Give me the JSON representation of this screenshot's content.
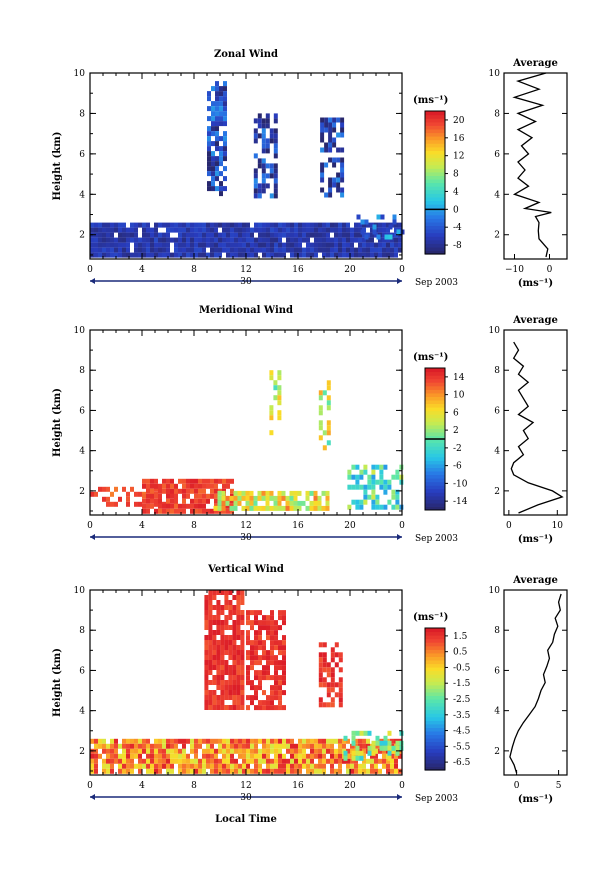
{
  "figure": {
    "xlabel": "Local Time",
    "date_label": "Sep 2003",
    "day_label": "30",
    "colors": {
      "axis": "#000000",
      "background": "#ffffff"
    }
  },
  "chart_data": [
    {
      "type": "heatmap",
      "title": "Zonal Wind",
      "xlabel": "",
      "ylabel": "Height (km)",
      "xlim": [
        0,
        24
      ],
      "ylim": [
        0.8,
        10
      ],
      "x_ticks": [
        "0",
        "4",
        "8",
        "12",
        "16",
        "20",
        "0"
      ],
      "y_ticks": [
        "2",
        "4",
        "6",
        "8",
        "10"
      ],
      "colorbar": {
        "unit": "(ms⁻¹)",
        "min": -10,
        "max": 22,
        "ticks": [
          "-8",
          "-4",
          "0",
          "4",
          "8",
          "12",
          "16",
          "20"
        ],
        "zero_line": 0
      },
      "regions": [
        {
          "t": [
            0,
            24
          ],
          "h": [
            1.0,
            2.6
          ],
          "v": -7,
          "density": 0.95
        },
        {
          "t": [
            9,
            10.6
          ],
          "h": [
            3.9,
            9.6
          ],
          "v": -6,
          "density": 0.75,
          "mixed": true
        },
        {
          "t": [
            12.6,
            14.5
          ],
          "h": [
            3.9,
            8.0
          ],
          "v": -6,
          "density": 0.7,
          "mixed": true
        },
        {
          "t": [
            17.7,
            19.6
          ],
          "h": [
            4.0,
            7.8
          ],
          "v": -6,
          "density": 0.65,
          "mixed": true
        },
        {
          "t": [
            20.5,
            24
          ],
          "h": [
            1.8,
            3.0
          ],
          "v": -2,
          "density": 0.4,
          "mixed": true
        }
      ],
      "average": {
        "title": "Average",
        "xlabel": "(ms⁻¹)",
        "xlim": [
          -13,
          5
        ],
        "x_ticks": [
          "−10",
          "0"
        ],
        "x_tick_values": [
          -10,
          0
        ],
        "heights": [
          0.9,
          1.3,
          1.8,
          2.2,
          2.6,
          2.9,
          3.1,
          3.3,
          3.6,
          4.0,
          4.4,
          4.8,
          5.2,
          5.6,
          6.0,
          6.4,
          6.8,
          7.2,
          7.6,
          8.0,
          8.4,
          8.8,
          9.2,
          9.6,
          10.0
        ],
        "values": [
          -1,
          -0.5,
          -3,
          -3.2,
          -3,
          -4,
          0.5,
          -7,
          -3,
          -10,
          -6,
          -9,
          -7,
          -9,
          -6,
          -8,
          -5,
          -9,
          -4,
          -9,
          -2,
          -10,
          -3,
          -9,
          -1
        ]
      }
    },
    {
      "type": "heatmap",
      "title": "Meridional Wind",
      "xlabel": "",
      "ylabel": "Height (km)",
      "xlim": [
        0,
        24
      ],
      "ylim": [
        0.8,
        10
      ],
      "x_ticks": [
        "0",
        "4",
        "8",
        "12",
        "16",
        "20",
        "0"
      ],
      "y_ticks": [
        "2",
        "4",
        "6",
        "8",
        "10"
      ],
      "colorbar": {
        "unit": "(ms⁻¹)",
        "min": -16,
        "max": 16,
        "ticks": [
          "-14",
          "-10",
          "-6",
          "-2",
          "2",
          "6",
          "10",
          "14"
        ],
        "zero_line": 0
      },
      "regions": [
        {
          "t": [
            0,
            7
          ],
          "h": [
            1.2,
            2.2
          ],
          "v": 13,
          "density": 0.5
        },
        {
          "t": [
            4,
            11
          ],
          "h": [
            1.0,
            2.6
          ],
          "v": 14,
          "density": 0.85
        },
        {
          "t": [
            9.5,
            18.5
          ],
          "h": [
            1.0,
            2.0
          ],
          "v": 6,
          "density": 0.75,
          "mixed": true
        },
        {
          "t": [
            13.8,
            14.8
          ],
          "h": [
            4.5,
            8.0
          ],
          "v": 3,
          "density": 0.55,
          "mixed": true
        },
        {
          "t": [
            17.6,
            18.6
          ],
          "h": [
            4.0,
            7.5
          ],
          "v": 4,
          "density": 0.6,
          "mixed": true
        },
        {
          "t": [
            19.8,
            24
          ],
          "h": [
            1.2,
            3.3
          ],
          "v": -1,
          "density": 0.55,
          "mixed": true
        }
      ],
      "average": {
        "title": "Average",
        "xlabel": "(ms⁻¹)",
        "xlim": [
          -1,
          12
        ],
        "x_ticks": [
          "0",
          "10"
        ],
        "x_tick_values": [
          0,
          10
        ],
        "heights": [
          0.9,
          1.3,
          1.7,
          2.0,
          2.4,
          2.8,
          3.1,
          3.4,
          3.8,
          4.2,
          4.6,
          5.0,
          5.4,
          5.8,
          6.2,
          6.6,
          7.0,
          7.4,
          7.8,
          8.2,
          8.6,
          9.0,
          9.4
        ],
        "values": [
          2,
          6,
          11,
          9,
          4,
          1,
          0.5,
          1,
          3,
          2,
          4,
          3,
          5,
          2,
          4,
          3,
          2,
          4,
          2,
          3,
          1,
          2,
          1
        ]
      }
    },
    {
      "type": "heatmap",
      "title": "Vertical Wind",
      "xlabel": "Local Time",
      "ylabel": "Height (km)",
      "xlim": [
        0,
        24
      ],
      "ylim": [
        0.8,
        10
      ],
      "x_ticks": [
        "0",
        "4",
        "8",
        "12",
        "16",
        "20",
        "0"
      ],
      "y_ticks": [
        "2",
        "4",
        "6",
        "8",
        "10"
      ],
      "colorbar": {
        "unit": "(ms⁻¹)",
        "min": -7,
        "max": 2,
        "ticks": [
          "-6.5",
          "-5.5",
          "-4.5",
          "-3.5",
          "-2.5",
          "-1.5",
          "-0.5",
          "0.5",
          "1.5"
        ]
      },
      "regions": [
        {
          "t": [
            0,
            24
          ],
          "h": [
            1.0,
            2.6
          ],
          "v": 0.4,
          "density": 0.9,
          "mixed": true
        },
        {
          "t": [
            8.8,
            11.8
          ],
          "h": [
            4.2,
            10.0
          ],
          "v": 1.6,
          "density": 0.85
        },
        {
          "t": [
            12,
            15
          ],
          "h": [
            4.2,
            9.0
          ],
          "v": 1.6,
          "density": 0.75
        },
        {
          "t": [
            17.6,
            19.4
          ],
          "h": [
            4.2,
            7.4
          ],
          "v": 1.6,
          "density": 0.65
        },
        {
          "t": [
            19.5,
            24
          ],
          "h": [
            1.5,
            3.0
          ],
          "v": -2,
          "density": 0.45,
          "mixed": true
        }
      ],
      "average": {
        "title": "Average",
        "xlabel": "(ms⁻¹)",
        "xlim": [
          -1.5,
          6
        ],
        "x_ticks": [
          "0",
          "5"
        ],
        "x_tick_values": [
          0,
          5
        ],
        "heights": [
          0.9,
          1.3,
          1.7,
          2.2,
          2.6,
          3.0,
          3.4,
          3.8,
          4.2,
          4.6,
          5.0,
          5.4,
          5.8,
          6.2,
          6.6,
          7.0,
          7.4,
          7.8,
          8.2,
          8.6,
          9.0,
          9.4,
          9.8
        ],
        "values": [
          0,
          -0.3,
          -0.8,
          -0.5,
          -0.2,
          0.2,
          0.8,
          1.5,
          2.2,
          2.6,
          2.9,
          3.4,
          3.2,
          3.6,
          3.9,
          3.7,
          4.3,
          4.5,
          4.9,
          4.6,
          5.2,
          5.0,
          5.3
        ]
      }
    }
  ]
}
